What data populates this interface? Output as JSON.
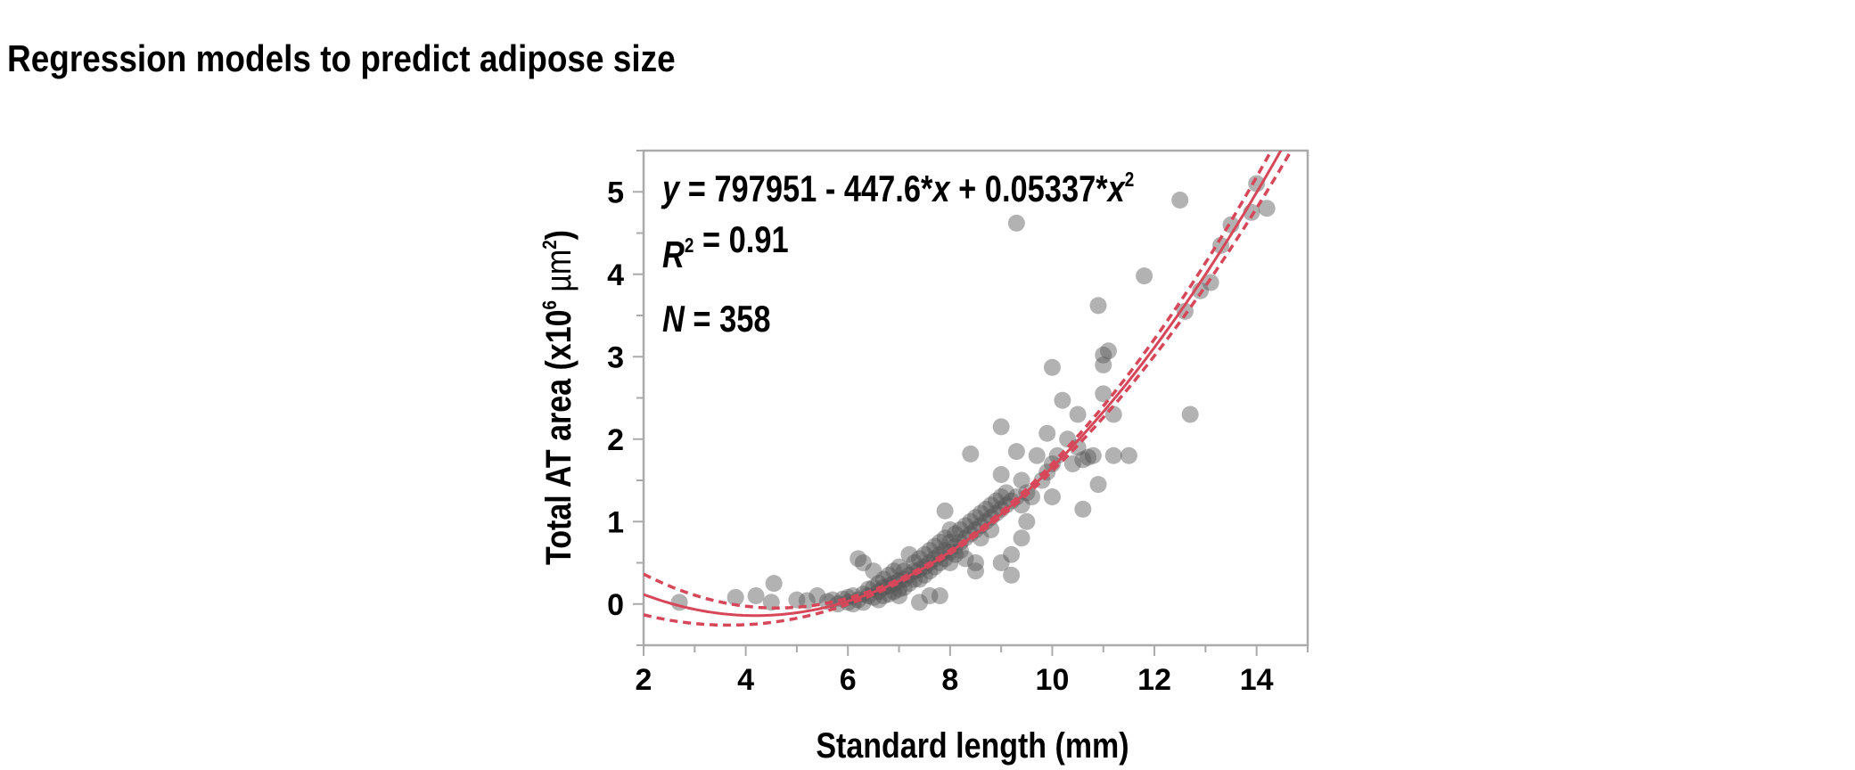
{
  "page_title": "Regression models to predict adipose size",
  "chart_data": {
    "type": "scatter",
    "xlabel": "Standard length (mm)",
    "ylabel_parts": [
      "Total AT area (x10",
      "6",
      " µm",
      "2",
      ")"
    ],
    "xlim": [
      2,
      15
    ],
    "ylim": [
      -0.5,
      5.5
    ],
    "xticks": [
      2,
      4,
      6,
      8,
      10,
      12,
      14
    ],
    "yticks": [
      0,
      1,
      2,
      3,
      4,
      5
    ],
    "grid": false,
    "colors": {
      "points": "#555555",
      "fit": "#d6475a",
      "axis": "#aaaaaa"
    },
    "annotations": {
      "equation_parts": [
        {
          "t": "y",
          "i": true
        },
        {
          "t": " = 797951 - 447.6*"
        },
        {
          "t": "x",
          "i": true
        },
        {
          "t": " + 0.05337*"
        },
        {
          "t": "x",
          "i": true
        },
        {
          "t": "2",
          "sup": true
        }
      ],
      "r2_parts": [
        {
          "t": "R",
          "i": true
        },
        {
          "t": "2",
          "sup": true
        },
        {
          "t": " = 0.91"
        }
      ],
      "n_parts": [
        {
          "t": "N",
          "i": true
        },
        {
          "t": " = 358"
        }
      ]
    },
    "fit": {
      "model": "quadratic",
      "coefficients": {
        "intercept": 797951,
        "linear": -447.6,
        "quadratic": 0.05337
      },
      "x_units_in_equation": "µm",
      "y_units_in_equation": "µm²",
      "r2": 0.91,
      "n": 358,
      "confidence_band": true
    },
    "points": [
      [
        2.7,
        0.02
      ],
      [
        3.8,
        0.08
      ],
      [
        4.2,
        0.1
      ],
      [
        4.55,
        0.25
      ],
      [
        4.5,
        0.02
      ],
      [
        5.0,
        0.05
      ],
      [
        5.2,
        0.04
      ],
      [
        5.4,
        0.1
      ],
      [
        5.6,
        0.03
      ],
      [
        5.7,
        0.05
      ],
      [
        5.8,
        0.0
      ],
      [
        5.9,
        0.06
      ],
      [
        6.0,
        0.02
      ],
      [
        6.0,
        0.08
      ],
      [
        6.1,
        0.0
      ],
      [
        6.1,
        0.1
      ],
      [
        6.2,
        0.55
      ],
      [
        6.3,
        0.5
      ],
      [
        6.2,
        0.05
      ],
      [
        6.3,
        0.12
      ],
      [
        6.3,
        0.02
      ],
      [
        6.4,
        0.1
      ],
      [
        6.4,
        0.18
      ],
      [
        6.5,
        0.4
      ],
      [
        6.5,
        0.08
      ],
      [
        6.5,
        0.2
      ],
      [
        6.6,
        0.15
      ],
      [
        6.6,
        0.25
      ],
      [
        6.6,
        0.05
      ],
      [
        6.7,
        0.2
      ],
      [
        6.7,
        0.1
      ],
      [
        6.7,
        0.3
      ],
      [
        6.8,
        0.22
      ],
      [
        6.8,
        0.12
      ],
      [
        6.8,
        0.35
      ],
      [
        6.9,
        0.25
      ],
      [
        6.9,
        0.15
      ],
      [
        6.9,
        0.4
      ],
      [
        7.0,
        0.28
      ],
      [
        7.0,
        0.18
      ],
      [
        7.0,
        0.45
      ],
      [
        7.0,
        0.1
      ],
      [
        7.1,
        0.3
      ],
      [
        7.1,
        0.4
      ],
      [
        7.1,
        0.2
      ],
      [
        7.2,
        0.6
      ],
      [
        7.2,
        0.35
      ],
      [
        7.2,
        0.25
      ],
      [
        7.3,
        0.4
      ],
      [
        7.3,
        0.3
      ],
      [
        7.3,
        0.5
      ],
      [
        7.4,
        0.02
      ],
      [
        7.4,
        0.42
      ],
      [
        7.4,
        0.55
      ],
      [
        7.4,
        0.3
      ],
      [
        7.5,
        0.45
      ],
      [
        7.5,
        0.35
      ],
      [
        7.5,
        0.6
      ],
      [
        7.6,
        0.5
      ],
      [
        7.6,
        0.4
      ],
      [
        7.6,
        0.65
      ],
      [
        7.6,
        0.1
      ],
      [
        7.7,
        0.55
      ],
      [
        7.7,
        0.7
      ],
      [
        7.7,
        0.45
      ],
      [
        7.8,
        0.1
      ],
      [
        7.8,
        0.6
      ],
      [
        7.8,
        0.75
      ],
      [
        7.8,
        0.5
      ],
      [
        7.9,
        1.13
      ],
      [
        7.9,
        0.65
      ],
      [
        7.9,
        0.8
      ],
      [
        7.9,
        0.55
      ],
      [
        8.0,
        0.63
      ],
      [
        8.0,
        0.75
      ],
      [
        8.0,
        0.9
      ],
      [
        8.0,
        0.5
      ],
      [
        8.1,
        0.7
      ],
      [
        8.1,
        0.85
      ],
      [
        8.1,
        0.6
      ],
      [
        8.2,
        0.75
      ],
      [
        8.2,
        0.9
      ],
      [
        8.2,
        0.65
      ],
      [
        8.3,
        0.8
      ],
      [
        8.3,
        0.95
      ],
      [
        8.3,
        0.55
      ],
      [
        8.4,
        1.82
      ],
      [
        8.4,
        0.85
      ],
      [
        8.4,
        1.0
      ],
      [
        8.5,
        0.5
      ],
      [
        8.5,
        0.4
      ],
      [
        8.5,
        0.9
      ],
      [
        8.5,
        1.05
      ],
      [
        8.6,
        0.95
      ],
      [
        8.6,
        1.1
      ],
      [
        8.6,
        0.8
      ],
      [
        8.7,
        1.0
      ],
      [
        8.7,
        1.15
      ],
      [
        8.8,
        1.05
      ],
      [
        8.8,
        1.2
      ],
      [
        8.8,
        0.9
      ],
      [
        8.9,
        1.1
      ],
      [
        8.9,
        1.25
      ],
      [
        9.0,
        2.15
      ],
      [
        9.0,
        1.57
      ],
      [
        9.0,
        0.5
      ],
      [
        9.0,
        1.15
      ],
      [
        9.0,
        1.3
      ],
      [
        9.1,
        1.2
      ],
      [
        9.1,
        1.35
      ],
      [
        9.2,
        0.6
      ],
      [
        9.2,
        0.35
      ],
      [
        9.2,
        1.25
      ],
      [
        9.3,
        4.62
      ],
      [
        9.3,
        1.85
      ],
      [
        9.3,
        1.3
      ],
      [
        9.4,
        1.5
      ],
      [
        9.4,
        0.8
      ],
      [
        9.4,
        1.2
      ],
      [
        9.5,
        1.0
      ],
      [
        9.5,
        1.35
      ],
      [
        9.6,
        1.3
      ],
      [
        9.7,
        1.8
      ],
      [
        9.8,
        1.5
      ],
      [
        9.9,
        2.07
      ],
      [
        9.9,
        1.6
      ],
      [
        10.0,
        1.3
      ],
      [
        10.0,
        2.87
      ],
      [
        10.0,
        1.7
      ],
      [
        10.1,
        1.8
      ],
      [
        10.2,
        2.47
      ],
      [
        10.3,
        2.0
      ],
      [
        10.4,
        1.7
      ],
      [
        10.5,
        2.3
      ],
      [
        10.5,
        1.9
      ],
      [
        10.6,
        1.15
      ],
      [
        10.6,
        1.75
      ],
      [
        10.7,
        1.78
      ],
      [
        10.8,
        1.8
      ],
      [
        10.9,
        1.45
      ],
      [
        10.9,
        3.62
      ],
      [
        11.0,
        3.02
      ],
      [
        11.0,
        2.9
      ],
      [
        11.1,
        3.07
      ],
      [
        11.0,
        2.55
      ],
      [
        11.2,
        2.3
      ],
      [
        11.2,
        1.8
      ],
      [
        11.5,
        1.8
      ],
      [
        11.8,
        3.98
      ],
      [
        12.5,
        4.9
      ],
      [
        12.6,
        3.55
      ],
      [
        12.7,
        2.3
      ],
      [
        12.9,
        3.8
      ],
      [
        13.1,
        3.9
      ],
      [
        13.3,
        4.35
      ],
      [
        13.5,
        4.6
      ],
      [
        13.9,
        4.75
      ],
      [
        14.0,
        5.1
      ],
      [
        14.2,
        4.8
      ]
    ]
  }
}
